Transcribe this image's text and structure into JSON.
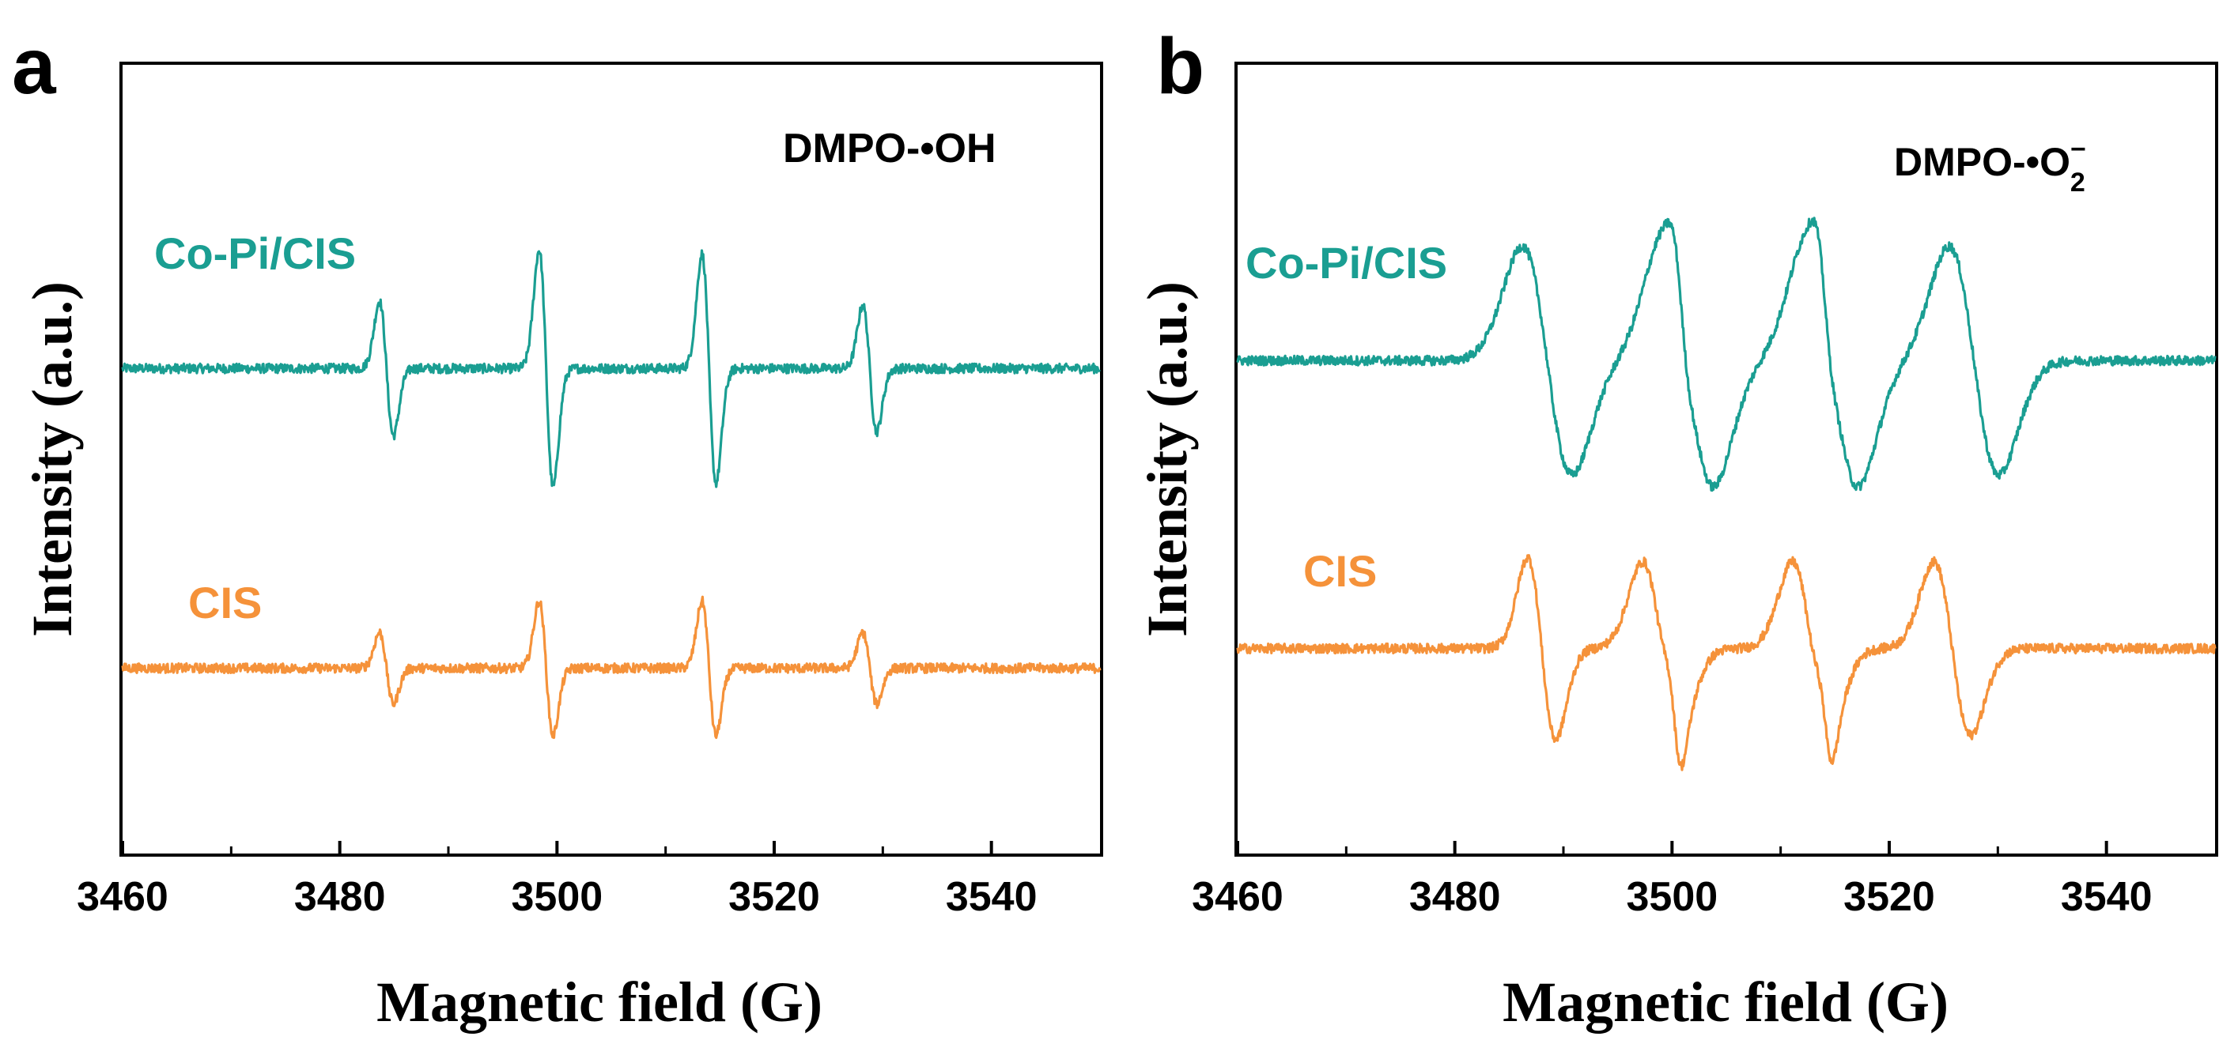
{
  "chart_data": [
    {
      "panel": "a",
      "type": "line",
      "annotation": "DMPO-•OH",
      "xlabel": "Magnetic field (G)",
      "ylabel": "Intensity (a.u.)",
      "xlim": [
        3460,
        3550
      ],
      "xticks": [
        3460,
        3480,
        3500,
        3520,
        3540
      ],
      "ylim": [
        0,
        1
      ],
      "grid": false,
      "series": [
        {
          "name": "Co-Pi/CIS",
          "color": "#1a9e92",
          "baseline": 0.615,
          "peaks": [
            {
              "center": 3484.3,
              "amplitude": 0.085,
              "width": 0.65
            },
            {
              "center": 3499.0,
              "amplitude": 0.15,
              "width": 0.65
            },
            {
              "center": 3514.0,
              "amplitude": 0.145,
              "width": 0.65
            },
            {
              "center": 3528.8,
              "amplitude": 0.08,
              "width": 0.65
            }
          ]
        },
        {
          "name": "CIS",
          "color": "#f5923a",
          "baseline": 0.235,
          "peaks": [
            {
              "center": 3484.3,
              "amplitude": 0.045,
              "width": 0.65
            },
            {
              "center": 3499.0,
              "amplitude": 0.085,
              "width": 0.65
            },
            {
              "center": 3514.0,
              "amplitude": 0.085,
              "width": 0.65
            },
            {
              "center": 3528.8,
              "amplitude": 0.045,
              "width": 0.65
            }
          ]
        }
      ]
    },
    {
      "panel": "b",
      "type": "line",
      "annotation": "DMPO-•O",
      "annotation_subscript": "2",
      "annotation_superscript": "−",
      "xlabel": "Magnetic field (G)",
      "ylabel": "Intensity (a.u.)",
      "xlim": [
        3460,
        3550
      ],
      "xticks": [
        3460,
        3480,
        3500,
        3520,
        3540
      ],
      "ylim": [
        0,
        1
      ],
      "grid": false,
      "series": [
        {
          "name": "Co-Pi/CIS",
          "color": "#1a9e92",
          "baseline": 0.625,
          "peaks": [
            {
              "center": 3488.5,
              "amplitude": 0.145,
              "width": 2.3
            },
            {
              "center": 3501.5,
              "amplitude": 0.16,
              "width": 2.3
            },
            {
              "center": 3514.8,
              "amplitude": 0.16,
              "width": 2.3
            },
            {
              "center": 3527.8,
              "amplitude": 0.145,
              "width": 2.3
            },
            {
              "center": 3500.8,
              "amplitude": 0.03,
              "width": 0.7
            },
            {
              "center": 3514.0,
              "amplitude": 0.03,
              "width": 0.7
            }
          ]
        },
        {
          "name": "CIS",
          "color": "#f5923a",
          "baseline": 0.26,
          "peaks": [
            {
              "center": 3488.0,
              "amplitude": 0.115,
              "width": 1.3
            },
            {
              "center": 3499.0,
              "amplitude": 0.11,
              "width": 1.7
            },
            {
              "center": 3512.8,
              "amplitude": 0.11,
              "width": 1.7
            },
            {
              "center": 3525.8,
              "amplitude": 0.11,
              "width": 1.7
            },
            {
              "center": 3500.3,
              "amplitude": 0.04,
              "width": 0.6
            },
            {
              "center": 3514.2,
              "amplitude": 0.035,
              "width": 0.6
            }
          ]
        }
      ]
    }
  ]
}
